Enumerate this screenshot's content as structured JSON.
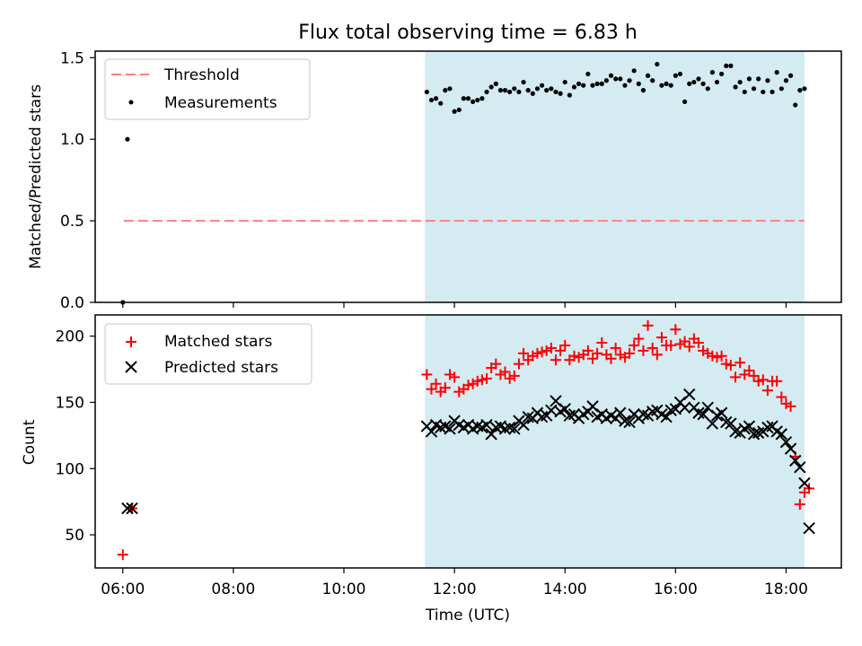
{
  "chart_data": [
    {
      "type": "scatter",
      "title": "Flux total observing time = 6.83 h",
      "xlabel": "",
      "ylabel": "Matched/Predicted stars",
      "ylim": [
        0,
        1.54
      ],
      "yticks": [
        "0.0",
        "0.5",
        "1.0",
        "1.5"
      ],
      "grid": false,
      "legend_position": "top-left",
      "shaded_interval": {
        "start": "11:28",
        "end": "18:20",
        "color": "#d4ebf1"
      },
      "series": [
        {
          "name": "Threshold",
          "kind": "dashed-line",
          "color": "#ff7f7f",
          "x": [
            "06:01",
            "18:20"
          ],
          "y": [
            0.5,
            0.5
          ]
        },
        {
          "name": "Measurements",
          "kind": "points",
          "color": "#000000",
          "x": [
            "06:00",
            "06:05",
            "11:30",
            "11:35",
            "11:40",
            "11:45",
            "11:50",
            "11:55",
            "12:00",
            "12:05",
            "12:10",
            "12:15",
            "12:20",
            "12:25",
            "12:30",
            "12:35",
            "12:40",
            "12:45",
            "12:50",
            "12:55",
            "13:00",
            "13:05",
            "13:10",
            "13:15",
            "13:20",
            "13:25",
            "13:30",
            "13:35",
            "13:40",
            "13:45",
            "13:50",
            "13:55",
            "14:00",
            "14:05",
            "14:10",
            "14:15",
            "14:20",
            "14:25",
            "14:30",
            "14:35",
            "14:40",
            "14:45",
            "14:50",
            "14:55",
            "15:00",
            "15:05",
            "15:10",
            "15:15",
            "15:20",
            "15:25",
            "15:30",
            "15:35",
            "15:40",
            "15:45",
            "15:50",
            "15:55",
            "16:00",
            "16:05",
            "16:10",
            "16:15",
            "16:20",
            "16:25",
            "16:30",
            "16:35",
            "16:40",
            "16:45",
            "16:50",
            "16:55",
            "17:00",
            "17:05",
            "17:10",
            "17:15",
            "17:20",
            "17:25",
            "17:30",
            "17:35",
            "17:40",
            "17:45",
            "17:50",
            "17:55",
            "18:00",
            "18:05",
            "18:10",
            "18:15",
            "18:20"
          ],
          "y": [
            0.0,
            1.0,
            1.29,
            1.24,
            1.25,
            1.22,
            1.3,
            1.31,
            1.17,
            1.18,
            1.25,
            1.25,
            1.23,
            1.24,
            1.25,
            1.29,
            1.32,
            1.34,
            1.3,
            1.3,
            1.29,
            1.31,
            1.29,
            1.35,
            1.3,
            1.28,
            1.31,
            1.33,
            1.3,
            1.31,
            1.29,
            1.28,
            1.35,
            1.27,
            1.32,
            1.34,
            1.33,
            1.4,
            1.33,
            1.34,
            1.34,
            1.36,
            1.39,
            1.37,
            1.37,
            1.33,
            1.36,
            1.42,
            1.34,
            1.3,
            1.39,
            1.36,
            1.46,
            1.33,
            1.34,
            1.33,
            1.39,
            1.4,
            1.23,
            1.34,
            1.35,
            1.37,
            1.34,
            1.31,
            1.41,
            1.35,
            1.4,
            1.45,
            1.45,
            1.32,
            1.35,
            1.29,
            1.37,
            1.31,
            1.37,
            1.29,
            1.36,
            1.29,
            1.41,
            1.31,
            1.36,
            1.39,
            1.21,
            1.3,
            1.31
          ]
        }
      ]
    },
    {
      "type": "scatter",
      "title": "",
      "xlabel": "Time (UTC)",
      "ylabel": "Count",
      "ylim": [
        25,
        216
      ],
      "yticks": [
        "50",
        "100",
        "150",
        "200"
      ],
      "xlim": [
        "05:30",
        "19:00"
      ],
      "xticks": [
        "06:00",
        "08:00",
        "10:00",
        "12:00",
        "14:00",
        "16:00",
        "18:00"
      ],
      "grid": false,
      "legend_position": "top-left",
      "shaded_interval": {
        "start": "11:28",
        "end": "18:20",
        "color": "#d4ebf1"
      },
      "series": [
        {
          "name": "Matched stars",
          "kind": "plus",
          "color": "#ff0000",
          "x": [
            "06:00",
            "06:10",
            "11:30",
            "11:35",
            "11:40",
            "11:45",
            "11:50",
            "11:55",
            "12:00",
            "12:05",
            "12:10",
            "12:15",
            "12:20",
            "12:25",
            "12:30",
            "12:35",
            "12:40",
            "12:45",
            "12:50",
            "12:55",
            "13:00",
            "13:05",
            "13:10",
            "13:15",
            "13:20",
            "13:25",
            "13:30",
            "13:35",
            "13:40",
            "13:45",
            "13:50",
            "13:55",
            "14:00",
            "14:05",
            "14:10",
            "14:15",
            "14:20",
            "14:25",
            "14:30",
            "14:35",
            "14:40",
            "14:45",
            "14:50",
            "14:55",
            "15:00",
            "15:05",
            "15:10",
            "15:15",
            "15:20",
            "15:25",
            "15:30",
            "15:35",
            "15:40",
            "15:45",
            "15:50",
            "15:55",
            "16:00",
            "16:05",
            "16:10",
            "16:15",
            "16:20",
            "16:25",
            "16:30",
            "16:35",
            "16:40",
            "16:45",
            "16:50",
            "16:55",
            "17:00",
            "17:05",
            "17:10",
            "17:15",
            "17:20",
            "17:25",
            "17:30",
            "17:35",
            "17:40",
            "17:45",
            "17:50",
            "17:55",
            "18:00",
            "18:05",
            "18:10",
            "18:15",
            "18:20",
            "18:25"
          ],
          "y": [
            35,
            70,
            171,
            160,
            164,
            158,
            161,
            171,
            169,
            158,
            160,
            163,
            164,
            166,
            167,
            168,
            176,
            179,
            171,
            173,
            168,
            170,
            179,
            187,
            182,
            185,
            187,
            188,
            189,
            191,
            182,
            189,
            193,
            182,
            185,
            184,
            186,
            189,
            183,
            187,
            195,
            186,
            183,
            191,
            186,
            184,
            187,
            193,
            198,
            189,
            208,
            191,
            186,
            199,
            193,
            193,
            205,
            194,
            196,
            192,
            198,
            195,
            189,
            187,
            185,
            184,
            185,
            179,
            178,
            169,
            180,
            171,
            174,
            170,
            166,
            167,
            159,
            166,
            166,
            154,
            149,
            147,
            109,
            73,
            82,
            85
          ]
        },
        {
          "name": "Predicted stars",
          "kind": "x",
          "color": "#000000",
          "x": [
            "06:05",
            "06:10",
            "11:30",
            "11:35",
            "11:40",
            "11:45",
            "11:50",
            "11:55",
            "12:00",
            "12:05",
            "12:10",
            "12:15",
            "12:20",
            "12:25",
            "12:30",
            "12:35",
            "12:40",
            "12:45",
            "12:50",
            "12:55",
            "13:00",
            "13:05",
            "13:10",
            "13:15",
            "13:20",
            "13:25",
            "13:30",
            "13:35",
            "13:40",
            "13:45",
            "13:50",
            "13:55",
            "14:00",
            "14:05",
            "14:10",
            "14:15",
            "14:20",
            "14:25",
            "14:30",
            "14:35",
            "14:40",
            "14:45",
            "14:50",
            "14:55",
            "15:00",
            "15:05",
            "15:10",
            "15:15",
            "15:20",
            "15:25",
            "15:30",
            "15:35",
            "15:40",
            "15:45",
            "15:50",
            "15:55",
            "16:00",
            "16:05",
            "16:10",
            "16:15",
            "16:20",
            "16:25",
            "16:30",
            "16:35",
            "16:40",
            "16:45",
            "16:50",
            "16:55",
            "17:00",
            "17:05",
            "17:10",
            "17:15",
            "17:20",
            "17:25",
            "17:30",
            "17:35",
            "17:40",
            "17:45",
            "17:50",
            "17:55",
            "18:00",
            "18:05",
            "18:10",
            "18:15",
            "18:20",
            "18:25"
          ],
          "y": [
            70,
            70,
            132,
            128,
            133,
            131,
            132,
            130,
            136,
            133,
            131,
            133,
            130,
            132,
            131,
            133,
            126,
            131,
            132,
            130,
            131,
            130,
            136,
            133,
            139,
            138,
            142,
            139,
            140,
            144,
            151,
            143,
            145,
            140,
            141,
            138,
            141,
            143,
            147,
            139,
            141,
            138,
            140,
            138,
            142,
            136,
            135,
            141,
            138,
            141,
            140,
            143,
            144,
            141,
            139,
            144,
            145,
            150,
            146,
            156,
            146,
            142,
            141,
            146,
            134,
            140,
            142,
            135,
            134,
            128,
            127,
            130,
            132,
            126,
            127,
            128,
            131,
            132,
            128,
            126,
            120,
            115,
            106,
            101,
            89,
            55
          ]
        }
      ]
    }
  ]
}
